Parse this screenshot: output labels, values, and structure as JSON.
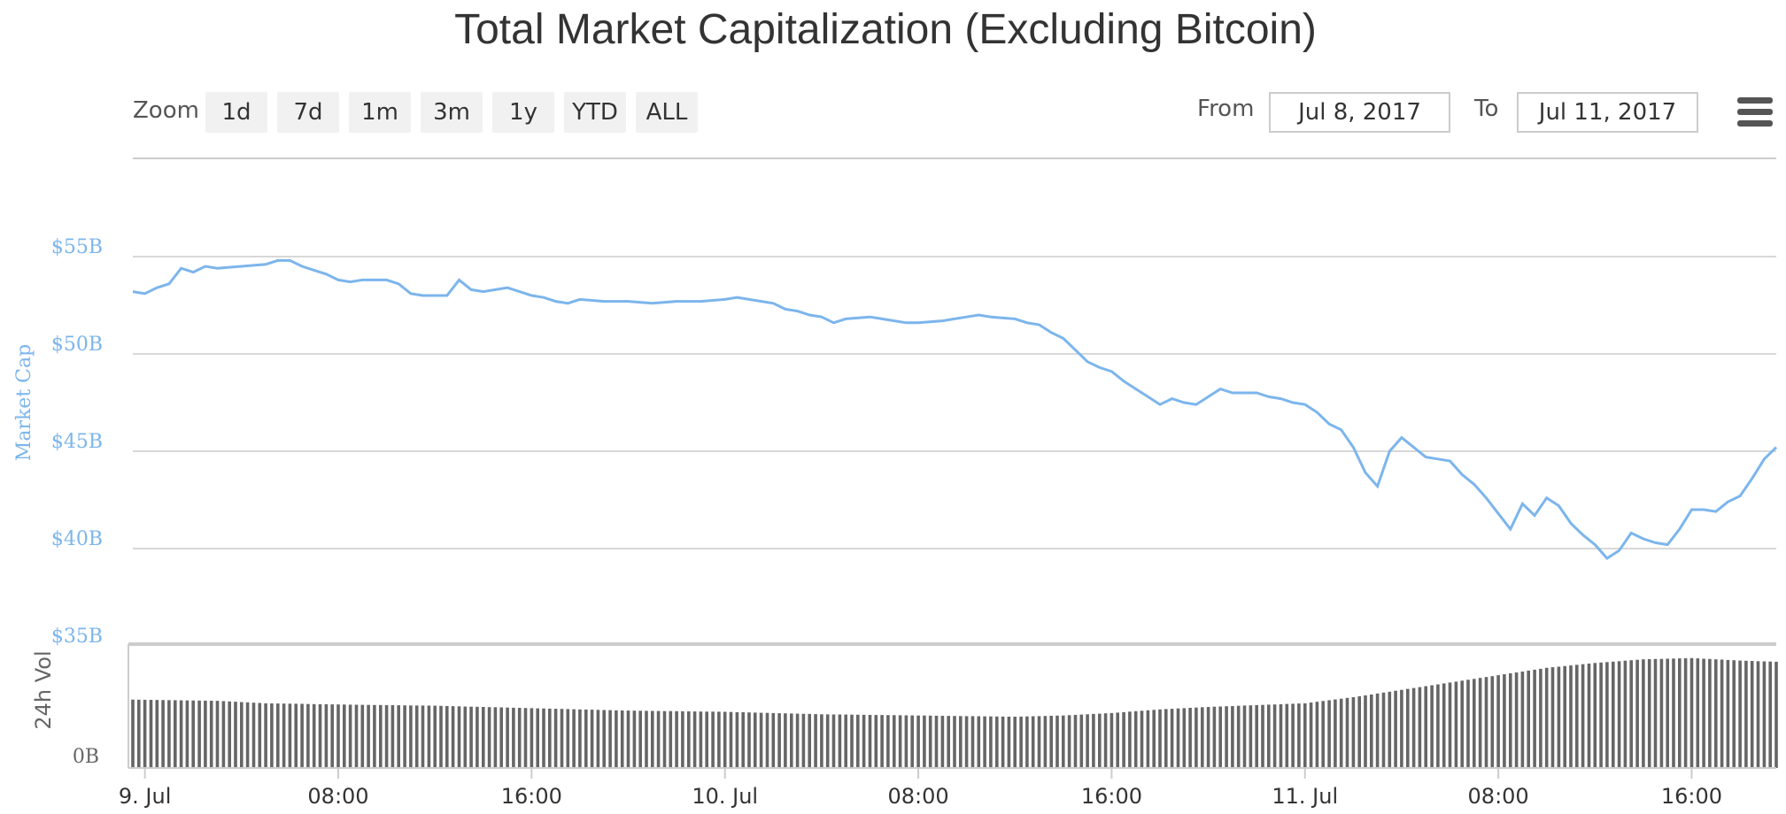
{
  "chart_data": {
    "type": "line",
    "title": "Total Market Capitalization (Excluding Bitcoin)",
    "ylabel": "Market Cap",
    "volume_label": "24h Vol",
    "volume_zero_label": "0B",
    "ylim": [
      35,
      55
    ],
    "yticks": [
      {
        "value": 55,
        "label": "$55B"
      },
      {
        "value": 50,
        "label": "$50B"
      },
      {
        "value": 45,
        "label": "$45B"
      },
      {
        "value": 40,
        "label": "$40B"
      },
      {
        "value": 35,
        "label": "$35B"
      }
    ],
    "xrange_hours": [
      -0.5,
      67.5
    ],
    "xticks": [
      {
        "hour": 0,
        "label": "9. Jul"
      },
      {
        "hour": 8,
        "label": "08:00"
      },
      {
        "hour": 16,
        "label": "16:00"
      },
      {
        "hour": 24,
        "label": "10. Jul"
      },
      {
        "hour": 32,
        "label": "08:00"
      },
      {
        "hour": 40,
        "label": "16:00"
      },
      {
        "hour": 48,
        "label": "11. Jul"
      },
      {
        "hour": 56,
        "label": "08:00"
      },
      {
        "hour": 64,
        "label": "16:00"
      }
    ],
    "series": [
      {
        "name": "Market Cap",
        "color": "#7cb5ec",
        "points": [
          [
            -0.5,
            53.2
          ],
          [
            0,
            53.1
          ],
          [
            0.5,
            53.4
          ],
          [
            1,
            53.6
          ],
          [
            1.5,
            54.4
          ],
          [
            2,
            54.2
          ],
          [
            2.5,
            54.5
          ],
          [
            3,
            54.4
          ],
          [
            4,
            54.5
          ],
          [
            5,
            54.6
          ],
          [
            5.5,
            54.8
          ],
          [
            6,
            54.8
          ],
          [
            6.5,
            54.5
          ],
          [
            7,
            54.3
          ],
          [
            7.5,
            54.1
          ],
          [
            8,
            53.8
          ],
          [
            8.5,
            53.7
          ],
          [
            9,
            53.8
          ],
          [
            10,
            53.8
          ],
          [
            10.5,
            53.6
          ],
          [
            11,
            53.1
          ],
          [
            11.5,
            53.0
          ],
          [
            12,
            53.0
          ],
          [
            12.5,
            53.0
          ],
          [
            13,
            53.8
          ],
          [
            13.5,
            53.3
          ],
          [
            14,
            53.2
          ],
          [
            14.5,
            53.3
          ],
          [
            15,
            53.4
          ],
          [
            15.5,
            53.2
          ],
          [
            16,
            53.0
          ],
          [
            16.5,
            52.9
          ],
          [
            17,
            52.7
          ],
          [
            17.5,
            52.6
          ],
          [
            18,
            52.8
          ],
          [
            19,
            52.7
          ],
          [
            20,
            52.7
          ],
          [
            21,
            52.6
          ],
          [
            22,
            52.7
          ],
          [
            23,
            52.7
          ],
          [
            24,
            52.8
          ],
          [
            24.5,
            52.9
          ],
          [
            25,
            52.8
          ],
          [
            26,
            52.6
          ],
          [
            26.5,
            52.3
          ],
          [
            27,
            52.2
          ],
          [
            27.5,
            52.0
          ],
          [
            28,
            51.9
          ],
          [
            28.5,
            51.6
          ],
          [
            29,
            51.8
          ],
          [
            30,
            51.9
          ],
          [
            30.5,
            51.8
          ],
          [
            31,
            51.7
          ],
          [
            31.5,
            51.6
          ],
          [
            32,
            51.6
          ],
          [
            33,
            51.7
          ],
          [
            33.5,
            51.8
          ],
          [
            34,
            51.9
          ],
          [
            34.5,
            52.0
          ],
          [
            35,
            51.9
          ],
          [
            36,
            51.8
          ],
          [
            36.5,
            51.6
          ],
          [
            37,
            51.5
          ],
          [
            37.5,
            51.1
          ],
          [
            38,
            50.8
          ],
          [
            38.5,
            50.2
          ],
          [
            39,
            49.6
          ],
          [
            39.5,
            49.3
          ],
          [
            40,
            49.1
          ],
          [
            40.5,
            48.6
          ],
          [
            41,
            48.2
          ],
          [
            41.5,
            47.8
          ],
          [
            42,
            47.4
          ],
          [
            42.5,
            47.7
          ],
          [
            43,
            47.5
          ],
          [
            43.5,
            47.4
          ],
          [
            44,
            47.8
          ],
          [
            44.5,
            48.2
          ],
          [
            45,
            48.0
          ],
          [
            46,
            48.0
          ],
          [
            46.5,
            47.8
          ],
          [
            47,
            47.7
          ],
          [
            47.5,
            47.5
          ],
          [
            48,
            47.4
          ],
          [
            48.5,
            47.0
          ],
          [
            49,
            46.4
          ],
          [
            49.5,
            46.1
          ],
          [
            50,
            45.2
          ],
          [
            50.5,
            43.9
          ],
          [
            51,
            43.2
          ],
          [
            51.5,
            45.0
          ],
          [
            52,
            45.7
          ],
          [
            52.5,
            45.2
          ],
          [
            53,
            44.7
          ],
          [
            53.5,
            44.6
          ],
          [
            54,
            44.5
          ],
          [
            54.5,
            43.8
          ],
          [
            55,
            43.3
          ],
          [
            55.5,
            42.6
          ],
          [
            56,
            41.8
          ],
          [
            56.5,
            41.0
          ],
          [
            57,
            42.3
          ],
          [
            57.5,
            41.7
          ],
          [
            58,
            42.6
          ],
          [
            58.5,
            42.2
          ],
          [
            59,
            41.3
          ],
          [
            59.5,
            40.7
          ],
          [
            60,
            40.2
          ],
          [
            60.5,
            39.5
          ],
          [
            61,
            39.9
          ],
          [
            61.5,
            40.8
          ],
          [
            62,
            40.5
          ],
          [
            62.5,
            40.3
          ],
          [
            63,
            40.2
          ],
          [
            63.5,
            41.0
          ],
          [
            64,
            42.0
          ],
          [
            64.5,
            42.0
          ],
          [
            65,
            41.9
          ],
          [
            65.5,
            42.4
          ],
          [
            66,
            42.7
          ],
          [
            66.5,
            43.6
          ],
          [
            67,
            44.6
          ],
          [
            67.5,
            45.2
          ]
        ]
      },
      {
        "name": "24h Vol",
        "color": "#666666",
        "volume_levels": [
          [
            -0.5,
            0.56
          ],
          [
            3,
            0.55
          ],
          [
            5,
            0.53
          ],
          [
            8,
            0.52
          ],
          [
            12,
            0.51
          ],
          [
            16,
            0.49
          ],
          [
            20,
            0.47
          ],
          [
            24,
            0.46
          ],
          [
            28,
            0.44
          ],
          [
            32,
            0.43
          ],
          [
            36,
            0.42
          ],
          [
            38,
            0.43
          ],
          [
            40,
            0.45
          ],
          [
            42,
            0.48
          ],
          [
            44,
            0.5
          ],
          [
            48,
            0.53
          ],
          [
            50,
            0.58
          ],
          [
            52,
            0.64
          ],
          [
            54,
            0.7
          ],
          [
            56,
            0.76
          ],
          [
            58,
            0.82
          ],
          [
            60,
            0.86
          ],
          [
            62,
            0.89
          ],
          [
            64,
            0.9
          ],
          [
            66,
            0.88
          ],
          [
            67.5,
            0.87
          ]
        ]
      }
    ]
  },
  "toolbar": {
    "zoom_label": "Zoom",
    "zoom_buttons": [
      "1d",
      "7d",
      "1m",
      "3m",
      "1y",
      "YTD",
      "ALL"
    ],
    "from_label": "From",
    "from_value": "Jul 8, 2017",
    "to_label": "To",
    "to_value": "Jul 11, 2017"
  }
}
